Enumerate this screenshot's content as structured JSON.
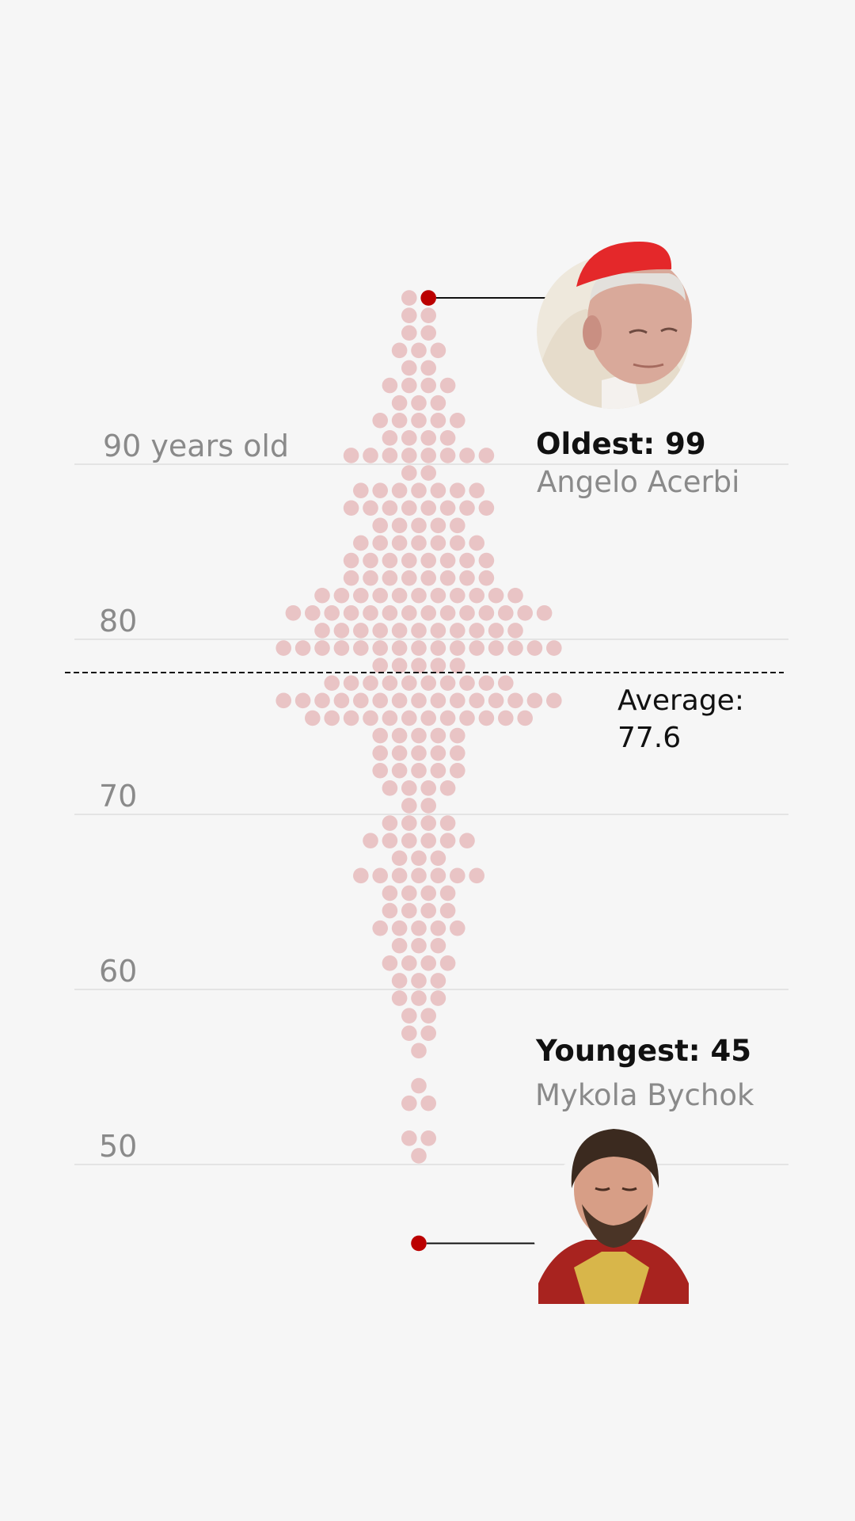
{
  "chart_data": {
    "type": "scatter",
    "subtype": "beeswarm",
    "unit": "years old",
    "ylim": [
      44,
      100
    ],
    "y_ticks": [
      {
        "value": 90,
        "label": "90 years old"
      },
      {
        "value": 80,
        "label": "80"
      },
      {
        "value": 70,
        "label": "70"
      },
      {
        "value": 60,
        "label": "60"
      },
      {
        "value": 50,
        "label": "50"
      }
    ],
    "grid": true,
    "counts_by_age": {
      "99": 2,
      "98": 2,
      "97": 2,
      "96": 3,
      "95": 2,
      "94": 4,
      "93": 3,
      "92": 5,
      "91": 4,
      "90": 8,
      "89": 2,
      "88": 7,
      "87": 8,
      "86": 5,
      "85": 7,
      "84": 8,
      "83": 8,
      "82": 11,
      "81": 14,
      "80": 11,
      "79": 15,
      "78": 5,
      "77": 10,
      "76": 15,
      "75": 12,
      "74": 5,
      "73": 5,
      "72": 5,
      "71": 4,
      "70": 2,
      "69": 4,
      "68": 6,
      "67": 3,
      "66": 7,
      "65": 4,
      "64": 4,
      "63": 5,
      "62": 3,
      "61": 4,
      "60": 3,
      "59": 3,
      "58": 2,
      "57": 2,
      "56": 1,
      "55": 0,
      "54": 1,
      "53": 2,
      "52": 0,
      "51": 2,
      "50": 1,
      "45": 1
    },
    "average": {
      "value": 77.6,
      "label": "Average:",
      "value_label": "77.6"
    },
    "highlights": [
      {
        "id": "oldest",
        "age": 99,
        "title": "Oldest: 99",
        "name": "Angelo Acerbi"
      },
      {
        "id": "youngest",
        "age": 45,
        "title": "Youngest: 45",
        "name": "Mykola Bychok"
      }
    ],
    "colors": {
      "dot": "#e9c4c5",
      "highlight": "#bb0000",
      "grid": "#dedede",
      "average_line": "#111111"
    }
  }
}
